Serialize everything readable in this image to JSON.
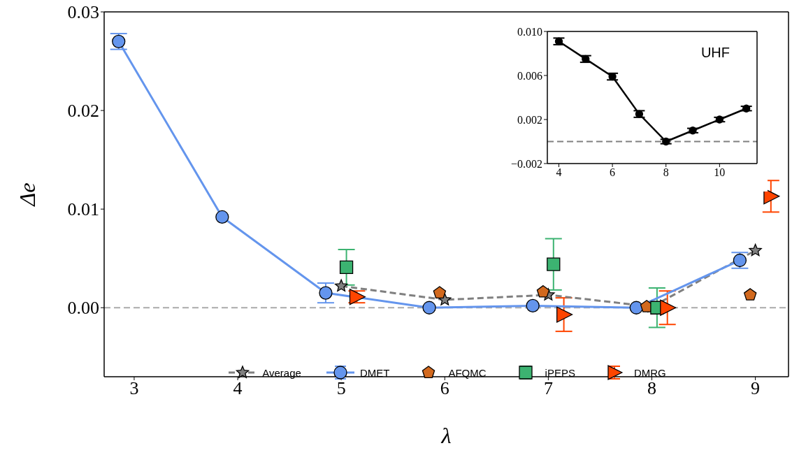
{
  "chart_data": [
    {
      "type": "line",
      "xlabel": "λ",
      "ylabel": "Δe",
      "xlim": [
        2.71,
        9.32
      ],
      "xticks": [
        3,
        4,
        5,
        6,
        7,
        8,
        9
      ],
      "ylim": [
        -0.007,
        0.03
      ],
      "yticks": [
        {
          "value": 0,
          "label": "0.00"
        },
        {
          "value": 0.01,
          "label": "0.01"
        },
        {
          "value": 0.02,
          "label": "0.02"
        },
        {
          "value": 0.03,
          "label": "0.03"
        }
      ],
      "legend": "bottom",
      "ref_lines": [
        {
          "axis": "y",
          "value": 0,
          "color": "#aaaaaa",
          "line_style": "dashed"
        }
      ],
      "series": [
        {
          "name": "Average",
          "type": "line",
          "color": "#808080",
          "marker": "star",
          "line_style": "dashed",
          "x": [
            5,
            6,
            7,
            8,
            9
          ],
          "values": [
            0.0022,
            0.0008,
            0.0013,
            0.0001,
            0.0058
          ]
        },
        {
          "name": "DMET",
          "type": "line",
          "color": "#6495ed",
          "marker": "circle",
          "line_style": "solid",
          "x": [
            2.85,
            3.85,
            4.85,
            5.85,
            6.85,
            7.85,
            8.85
          ],
          "values": [
            0.027,
            0.0092,
            0.0015,
            0.0,
            0.0002,
            0.0,
            0.0048
          ],
          "errors": [
            0.0008,
            null,
            0.001,
            null,
            null,
            null,
            0.0008
          ]
        },
        {
          "name": "AFQMC",
          "type": "scatter",
          "color": "#d2691e",
          "x": [
            5.95,
            6.95,
            7.95,
            8.95
          ],
          "values": [
            0.0015,
            0.0016,
            0.0001,
            0.0013
          ]
        },
        {
          "name": "iPEPS",
          "type": "scatter",
          "color": "#3cb371",
          "marker": "square",
          "x": [
            5.05,
            7.05,
            8.05
          ],
          "values": [
            0.0041,
            0.0044,
            0.0
          ],
          "errors": [
            0.0018,
            0.0026,
            0.002
          ]
        },
        {
          "name": "DMRG",
          "type": "scatter",
          "color": "#ff4500",
          "marker": "triangle",
          "x": [
            5.15,
            7.15,
            8.15,
            9.15
          ],
          "values": [
            0.0011,
            -0.0007,
            0.0,
            0.0113
          ],
          "errors": [
            0.0006,
            0.0017,
            0.0017,
            0.0016
          ]
        }
      ]
    },
    {
      "type": "line",
      "annotations": [
        "UHF"
      ],
      "xlim": [
        3.57,
        11.4
      ],
      "xticks": [
        4,
        6,
        8,
        10
      ],
      "ylim": [
        -0.002,
        0.01
      ],
      "yticks": [
        {
          "value": -0.002,
          "label": "−0.002"
        },
        {
          "value": 0.002,
          "label": "0.002"
        },
        {
          "value": 0.006,
          "label": "0.006"
        },
        {
          "value": 0.01,
          "label": "0.010"
        }
      ],
      "ref_lines": [
        {
          "axis": "y",
          "value": 0,
          "color": "#808080",
          "line_style": "dashed"
        }
      ],
      "series": [
        {
          "type": "line",
          "color": "#000000",
          "marker": "circle",
          "line_style": "solid",
          "x": [
            4,
            5,
            6,
            7,
            8,
            9,
            10,
            11
          ],
          "values": [
            0.0091,
            0.0075,
            0.0059,
            0.0025,
            0.0,
            0.001,
            0.002,
            0.003
          ],
          "errors": [
            0.0003,
            0.0003,
            0.0003,
            0.0003,
            0.0002,
            0.0002,
            0.0002,
            0.0002
          ]
        }
      ]
    }
  ]
}
